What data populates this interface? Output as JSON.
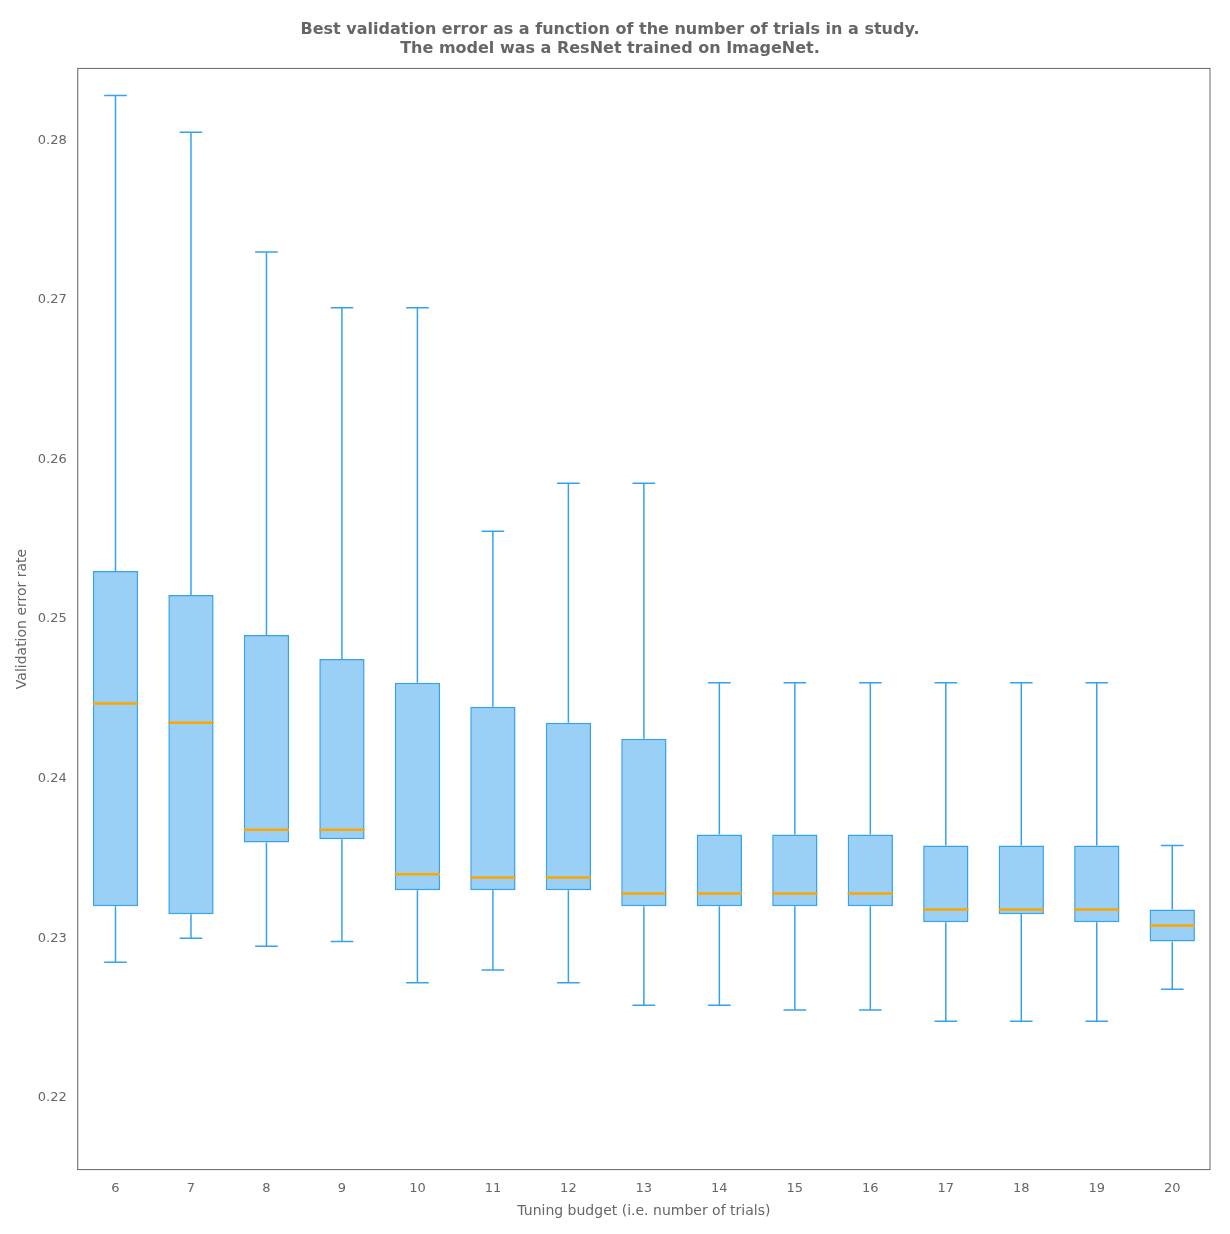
{
  "chart_data": {
    "type": "box",
    "title": "Best validation error as a function of the number of trials in a study.\nThe model was a ResNet trained on ImageNet.",
    "xlabel": "Tuning budget (i.e. number of trials)",
    "ylabel": "Validation error rate",
    "categories": [
      "6",
      "7",
      "8",
      "9",
      "10",
      "11",
      "12",
      "13",
      "14",
      "15",
      "16",
      "17",
      "18",
      "19",
      "20"
    ],
    "whislo": [
      0.2285,
      0.23,
      0.2295,
      0.2298,
      0.2272,
      0.228,
      0.2272,
      0.2258,
      0.2258,
      0.2255,
      0.2255,
      0.2248,
      0.2248,
      0.2248,
      0.2268
    ],
    "q1": [
      0.232,
      0.2315,
      0.236,
      0.2362,
      0.233,
      0.233,
      0.233,
      0.232,
      0.232,
      0.232,
      0.232,
      0.231,
      0.2315,
      0.231,
      0.2298
    ],
    "median": [
      0.2447,
      0.2435,
      0.2368,
      0.2368,
      0.234,
      0.2338,
      0.2338,
      0.2328,
      0.2328,
      0.2328,
      0.2328,
      0.2318,
      0.2318,
      0.2318,
      0.2308
    ],
    "q3": [
      0.253,
      0.2515,
      0.249,
      0.2475,
      0.246,
      0.2445,
      0.2435,
      0.2425,
      0.2365,
      0.2365,
      0.2365,
      0.2358,
      0.2358,
      0.2358,
      0.2318
    ],
    "whishi": [
      0.2828,
      0.2805,
      0.273,
      0.2695,
      0.2695,
      0.2555,
      0.2585,
      0.2585,
      0.246,
      0.246,
      0.246,
      0.246,
      0.246,
      0.246,
      0.2358
    ],
    "color": "orange",
    "ylim": [
      0.2155,
      0.2845
    ],
    "yticks": [
      0.22,
      0.23,
      0.24,
      0.25,
      0.26,
      0.27,
      0.28
    ],
    "grid": false
  }
}
